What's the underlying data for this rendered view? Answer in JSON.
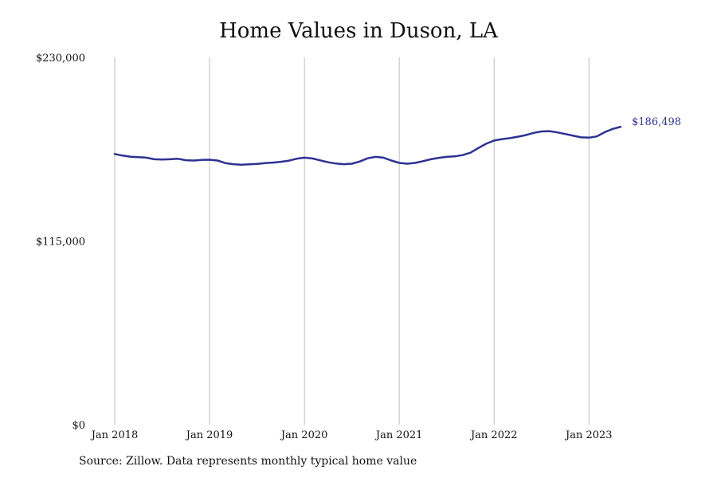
{
  "chart_data": {
    "type": "line",
    "title": "Home Values in Duson, LA",
    "xlabel": "",
    "ylabel": "",
    "x_range": [
      "2018-01",
      "2023-05"
    ],
    "ylim": [
      0,
      230000
    ],
    "y_ticks": [
      {
        "value": 0,
        "label": "$0"
      },
      {
        "value": 115000,
        "label": "$115,000"
      },
      {
        "value": 230000,
        "label": "$230,000"
      }
    ],
    "x_ticks": [
      {
        "date": "2018-01",
        "label": "Jan 2018"
      },
      {
        "date": "2019-01",
        "label": "Jan 2019"
      },
      {
        "date": "2020-01",
        "label": "Jan 2020"
      },
      {
        "date": "2021-01",
        "label": "Jan 2021"
      },
      {
        "date": "2022-01",
        "label": "Jan 2022"
      },
      {
        "date": "2023-01",
        "label": "Jan 2023"
      }
    ],
    "grid": {
      "vertical": true,
      "horizontal": false
    },
    "series": [
      {
        "color": "#2e3192",
        "x": [
          "2018-01",
          "2018-02",
          "2018-03",
          "2018-04",
          "2018-05",
          "2018-06",
          "2018-07",
          "2018-08",
          "2018-09",
          "2018-10",
          "2018-11",
          "2018-12",
          "2019-01",
          "2019-02",
          "2019-03",
          "2019-04",
          "2019-05",
          "2019-06",
          "2019-07",
          "2019-08",
          "2019-09",
          "2019-10",
          "2019-11",
          "2019-12",
          "2020-01",
          "2020-02",
          "2020-03",
          "2020-04",
          "2020-05",
          "2020-06",
          "2020-07",
          "2020-08",
          "2020-09",
          "2020-10",
          "2020-11",
          "2020-12",
          "2021-01",
          "2021-02",
          "2021-03",
          "2021-04",
          "2021-05",
          "2021-06",
          "2021-07",
          "2021-08",
          "2021-09",
          "2021-10",
          "2021-11",
          "2021-12",
          "2022-01",
          "2022-02",
          "2022-03",
          "2022-04",
          "2022-05",
          "2022-06",
          "2022-07",
          "2022-08",
          "2022-09",
          "2022-10",
          "2022-11",
          "2022-12",
          "2023-01",
          "2023-02",
          "2023-03",
          "2023-04",
          "2023-05"
        ],
        "values": [
          169500,
          168500,
          167800,
          167500,
          167200,
          166200,
          166000,
          166200,
          166500,
          165600,
          165400,
          165800,
          165900,
          165400,
          163800,
          163100,
          162800,
          163000,
          163300,
          163800,
          164100,
          164600,
          165300,
          166500,
          167200,
          166700,
          165500,
          164300,
          163500,
          163100,
          163400,
          164800,
          166800,
          167700,
          167200,
          165400,
          163900,
          163400,
          163900,
          165000,
          166200,
          167100,
          167700,
          168000,
          168800,
          170300,
          173200,
          175900,
          177900,
          178800,
          179400,
          180300,
          181300,
          182700,
          183600,
          183800,
          183000,
          182000,
          180900,
          179900,
          179700,
          180500,
          183200,
          185200,
          186498
        ],
        "end_label": "$186,498"
      }
    ]
  },
  "source": "Source: Zillow. Data represents monthly typical home value"
}
